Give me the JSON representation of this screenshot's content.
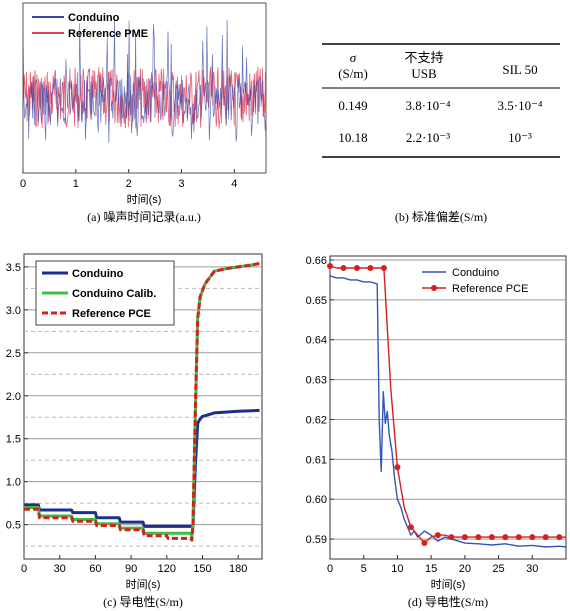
{
  "chart_data": [
    {
      "id": "a",
      "type": "line",
      "caption": "(a) 噪声时间记录(a.u.)",
      "xlabel": "时间(s)",
      "xlim": [
        0,
        4.6
      ],
      "xticks": [
        0,
        1,
        2,
        3,
        4
      ],
      "grid": false,
      "legend": "top-left",
      "series": [
        {
          "name": "Conduino",
          "color": "#3344aa"
        },
        {
          "name": "Reference PME",
          "color": "#e0405a"
        }
      ]
    },
    {
      "id": "b",
      "type": "table",
      "caption": "(b) 标准偏差(S/m)",
      "header": [
        [
          "σ",
          "(S/m)"
        ],
        [
          "不支持",
          "USB"
        ],
        [
          "SIL 50"
        ]
      ],
      "rows": [
        [
          "0.149",
          "3.8·10⁻⁴",
          "3.5·10⁻⁴"
        ],
        [
          "10.18",
          "2.2·10⁻³",
          "10⁻³"
        ]
      ]
    },
    {
      "id": "c",
      "type": "line",
      "caption": "(c) 导电性(S/m)",
      "xlabel": "时间(s)",
      "xlim": [
        0,
        200
      ],
      "ylim": [
        0.1,
        3.65
      ],
      "xticks": [
        0,
        30,
        60,
        90,
        120,
        150,
        180
      ],
      "yticks": [
        0.5,
        1.0,
        1.5,
        2.0,
        2.5,
        3.0,
        3.5
      ],
      "ytick_labels": [
        "0.5",
        "1.0",
        "1.5",
        "2.0",
        "2.5",
        "3.0",
        "3.5"
      ],
      "grid": true,
      "legend": "top-left",
      "series": [
        {
          "name": "Conduino",
          "color": "#1c2f8c",
          "x": [
            0,
            12,
            13,
            40,
            41,
            60,
            61,
            80,
            81,
            100,
            101,
            142,
            144,
            146,
            148,
            150,
            160,
            180,
            198
          ],
          "y": [
            0.73,
            0.73,
            0.67,
            0.67,
            0.64,
            0.64,
            0.58,
            0.58,
            0.53,
            0.53,
            0.48,
            0.48,
            1.2,
            1.68,
            1.73,
            1.76,
            1.8,
            1.82,
            1.83
          ]
        },
        {
          "name": "Conduino Calib.",
          "color": "#3fbf3f",
          "x": [
            0,
            12,
            13,
            40,
            41,
            60,
            61,
            80,
            81,
            100,
            101,
            140,
            141,
            142,
            144,
            146,
            148,
            152,
            160,
            170,
            180,
            190,
            198
          ],
          "y": [
            0.7,
            0.7,
            0.6,
            0.6,
            0.56,
            0.56,
            0.51,
            0.51,
            0.46,
            0.46,
            0.4,
            0.4,
            0.36,
            0.5,
            1.8,
            2.9,
            3.15,
            3.3,
            3.45,
            3.48,
            3.5,
            3.52,
            3.54
          ]
        },
        {
          "name": "Reference PCE",
          "color": "#d42020",
          "x": [
            0,
            12,
            13,
            40,
            41,
            60,
            61,
            80,
            81,
            100,
            101,
            120,
            121,
            140,
            141,
            142,
            144,
            146,
            148,
            152,
            160,
            170,
            180,
            190,
            198
          ],
          "y": [
            0.68,
            0.68,
            0.58,
            0.58,
            0.54,
            0.54,
            0.49,
            0.49,
            0.44,
            0.44,
            0.37,
            0.37,
            0.34,
            0.34,
            0.32,
            0.5,
            1.9,
            2.9,
            3.15,
            3.3,
            3.45,
            3.48,
            3.5,
            3.52,
            3.54
          ]
        }
      ]
    },
    {
      "id": "d",
      "type": "line",
      "caption": "(d) 导电性(S/m)",
      "xlabel": "时间(s)",
      "xlim": [
        0,
        35
      ],
      "ylim": [
        0.585,
        0.661
      ],
      "xticks": [
        0,
        5,
        10,
        15,
        20,
        25,
        30
      ],
      "yticks": [
        0.59,
        0.6,
        0.61,
        0.62,
        0.63,
        0.64,
        0.65,
        0.66
      ],
      "ytick_labels": [
        "0.59",
        "0.60",
        "0.61",
        "0.62",
        "0.63",
        "0.64",
        "0.65",
        "0.66"
      ],
      "grid": true,
      "legend": "top-right",
      "series": [
        {
          "name": "Conduino",
          "color": "#3355bb",
          "x": [
            0,
            1,
            2,
            3,
            4,
            5,
            6,
            7,
            7.3,
            7.6,
            7.9,
            8.2,
            8.5,
            8.8,
            9.2,
            9.6,
            10,
            10.5,
            11,
            11.5,
            12,
            12.5,
            13,
            14,
            15,
            16,
            17,
            18,
            19,
            20,
            22,
            24,
            26,
            28,
            30,
            32,
            34,
            35
          ],
          "y": [
            0.656,
            0.6555,
            0.6555,
            0.655,
            0.655,
            0.6545,
            0.6545,
            0.654,
            0.62,
            0.607,
            0.627,
            0.619,
            0.622,
            0.616,
            0.612,
            0.605,
            0.6,
            0.598,
            0.595,
            0.593,
            0.591,
            0.592,
            0.5905,
            0.592,
            0.591,
            0.5895,
            0.5905,
            0.59,
            0.5895,
            0.589,
            0.5888,
            0.5885,
            0.5888,
            0.5882,
            0.5884,
            0.588,
            0.5882,
            0.588
          ]
        },
        {
          "name": "Reference PCE",
          "color": "#d42020",
          "x": [
            0,
            1,
            2,
            3,
            4,
            5,
            6,
            7,
            8,
            9,
            10,
            11,
            12,
            13,
            14,
            15,
            16,
            17,
            18,
            19,
            20,
            21,
            22,
            23,
            24,
            25,
            26,
            27,
            28,
            29,
            30,
            31,
            32,
            33,
            34,
            35
          ],
          "y": [
            0.6585,
            0.658,
            0.658,
            0.658,
            0.658,
            0.658,
            0.658,
            0.658,
            0.658,
            0.628,
            0.608,
            0.598,
            0.593,
            0.591,
            0.589,
            0.5905,
            0.591,
            0.591,
            0.5905,
            0.5905,
            0.5905,
            0.5905,
            0.5905,
            0.5905,
            0.5905,
            0.5905,
            0.5905,
            0.5905,
            0.5905,
            0.5905,
            0.5905,
            0.5905,
            0.5905,
            0.5905,
            0.5905,
            0.5905
          ],
          "markers": [
            0,
            2,
            4,
            6,
            8,
            10,
            12,
            14,
            16,
            18,
            20,
            22,
            24,
            26,
            28,
            30,
            32,
            34
          ]
        }
      ]
    }
  ]
}
